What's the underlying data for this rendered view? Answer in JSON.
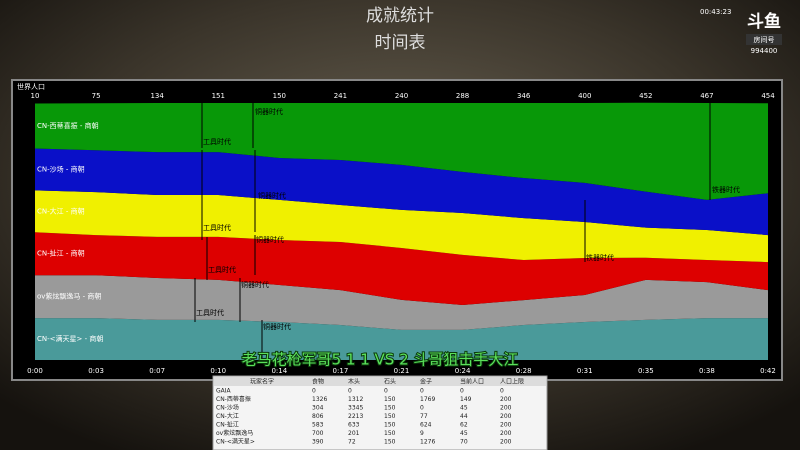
{
  "header": {
    "title": "成就统计",
    "subtitle": "时间表"
  },
  "overlay": {
    "clock": "00:43:23",
    "logo": "斗鱼",
    "room_label": "房间号",
    "room_id": "994400",
    "caption": "老马花枪军哥5 1 1 VS 2 斗哥狙击手大江"
  },
  "chart_data": {
    "type": "area",
    "title": "世界人口",
    "top_labels": [
      10,
      75,
      134,
      151,
      150,
      241,
      240,
      288,
      346,
      400,
      452,
      467,
      454
    ],
    "categories": [
      "0:00",
      "0:03",
      "0:07",
      "0:10",
      "0:14",
      "0:17",
      "0:21",
      "0:24",
      "0:28",
      "0:31",
      "0:35",
      "0:38",
      "0:42"
    ],
    "ylim": [
      0,
      100
    ],
    "series": [
      {
        "name": "CN-西蒂喜振 - 商朝",
        "color": "#089808",
        "values": [
          17.5,
          18.3,
          19.1,
          19.1,
          21.4,
          22.2,
          24.1,
          26.8,
          29.2,
          31.1,
          34.6,
          37.7,
          35.0
        ]
      },
      {
        "name": "CN-沙场 - 商朝",
        "color": "#0a10c8",
        "values": [
          16.3,
          16.3,
          16.7,
          16.7,
          16.3,
          17.5,
          17.5,
          16.0,
          15.6,
          15.2,
          14.0,
          11.7,
          16.3
        ]
      },
      {
        "name": "CN-大江 - 商朝",
        "color": "#f0f000",
        "values": [
          16.3,
          16.7,
          16.3,
          16.3,
          15.6,
          14.4,
          14.8,
          16.3,
          16.3,
          14.0,
          11.7,
          11.7,
          10.5
        ]
      },
      {
        "name": "CN-扯江 - 商朝",
        "color": "#dd0000",
        "values": [
          16.7,
          15.6,
          16.0,
          16.7,
          17.5,
          18.7,
          20.2,
          19.5,
          15.6,
          14.4,
          8.6,
          8.6,
          10.9
        ]
      },
      {
        "name": "ov紫炫飘逸马 - 商朝",
        "color": "#9a9a9a",
        "values": [
          16.7,
          16.7,
          16.3,
          15.6,
          14.4,
          13.6,
          11.7,
          9.7,
          9.7,
          10.5,
          15.6,
          14.0,
          10.9
        ]
      },
      {
        "name": "CN-<满天星> - 商朝",
        "color": "#4a9a9a",
        "values": [
          16.3,
          16.3,
          15.6,
          15.6,
          14.8,
          13.6,
          11.7,
          11.7,
          13.6,
          14.8,
          15.6,
          16.3,
          16.3
        ]
      }
    ],
    "annotations": [
      "铜器时代",
      "工具时代",
      "铁器时代",
      "铜器时代",
      "工具时代",
      "铜器时代",
      "铁器时代",
      "工具时代",
      "铜器时代",
      "工具时代",
      "铜器时代"
    ]
  },
  "table": {
    "header": [
      "玩家名字",
      "食物",
      "木头",
      "石头",
      "金子",
      "当前人口",
      "人口上限"
    ],
    "rows": [
      [
        "GAIA",
        0,
        0,
        0,
        0,
        0,
        0
      ],
      [
        "CN-西蒂喜振",
        1326,
        1312,
        150,
        1769,
        149,
        200
      ],
      [
        "CN-沙场",
        304,
        3345,
        150,
        0,
        45,
        200
      ],
      [
        "CN-大江",
        806,
        2213,
        150,
        77,
        44,
        200
      ],
      [
        "CN-扯江",
        583,
        633,
        150,
        624,
        62,
        200
      ],
      [
        "ov紫炫飘逸马",
        700,
        201,
        150,
        9,
        45,
        200
      ],
      [
        "CN-<满天星>",
        390,
        72,
        150,
        1276,
        70,
        200
      ]
    ]
  }
}
